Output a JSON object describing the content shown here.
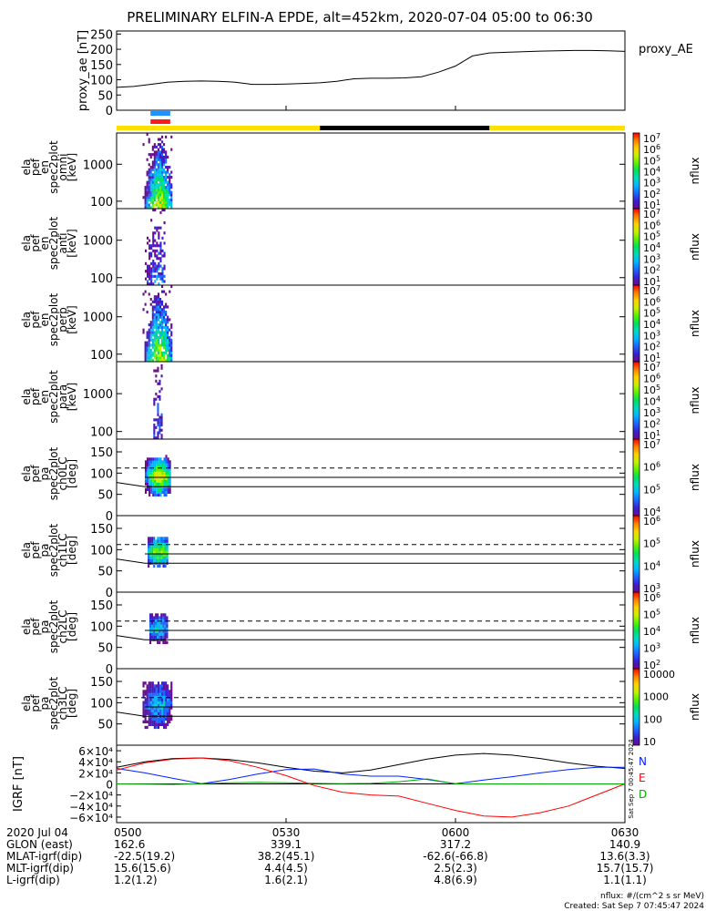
{
  "title": "PRELIMINARY ELFIN-A EPDE, alt=452km, 2020-07-04 05:00 to 06:30",
  "colors": {
    "ae_line": "#000000",
    "bar_blue": "#1e90ff",
    "bar_red": "#ff1a1a",
    "status_yellow": "#ffe000",
    "status_black": "#000000",
    "igrf_n": "#0022ff",
    "igrf_e": "#ff0000",
    "igrf_d": "#00aa00",
    "igrf_total": "#000000"
  },
  "colorbar_colors": [
    "#ffffff",
    "#6a0a8c",
    "#3a1fd0",
    "#1e64ff",
    "#00b4ff",
    "#00d8c0",
    "#00e060",
    "#5ef000",
    "#c8f000",
    "#ffd000",
    "#ff8000",
    "#ff0000"
  ],
  "chart_data": [
    {
      "type": "line",
      "name": "proxy_ae",
      "ylabel": "proxy_ae [nT]",
      "legend": "proxy_AE",
      "ylim": [
        0,
        260
      ],
      "yticks": [
        "250",
        "200",
        "150",
        "100",
        "50",
        "0"
      ],
      "x": [
        0,
        3,
        6,
        9,
        12,
        15,
        18,
        21,
        24,
        27,
        30,
        33,
        36,
        39,
        42,
        45,
        48,
        51,
        54,
        57,
        60,
        63,
        66,
        69,
        72,
        75,
        78,
        81,
        84,
        87,
        90
      ],
      "values": [
        75,
        78,
        85,
        92,
        95,
        96,
        95,
        92,
        85,
        85,
        86,
        88,
        90,
        95,
        103,
        105,
        105,
        106,
        110,
        125,
        145,
        178,
        188,
        190,
        192,
        194,
        195,
        196,
        196,
        195,
        193
      ]
    },
    {
      "type": "status",
      "blue_bar": {
        "from": 6.0,
        "to": 9.5
      },
      "red_bar": {
        "from": 6.0,
        "to": 9.5
      },
      "yellow_segments": [
        [
          0,
          36.0
        ],
        [
          66.0,
          90
        ]
      ],
      "black_segments": [
        [
          36.0,
          66.0
        ]
      ]
    },
    {
      "type": "heatmap",
      "name": "omni",
      "ylabel": [
        "ela",
        "pef",
        "en",
        "spec2plot",
        "omni",
        "[keV]"
      ],
      "yticks": [
        "1000",
        "100"
      ],
      "ylim_keV": [
        63,
        7000
      ],
      "log": true,
      "colorbar": {
        "label": "nflux",
        "ticks": [
          "10^7",
          "10^6",
          "10^5",
          "10^4",
          "10^3",
          "10^2",
          "10^1"
        ]
      },
      "x_range": [
        4.6,
        9.6
      ],
      "peak_x": 7.4,
      "intensity": 1.0
    },
    {
      "type": "heatmap",
      "name": "anti",
      "ylabel": [
        "ela",
        "pef",
        "en",
        "spec2plot",
        "anti",
        "[keV]"
      ],
      "yticks": [
        "1000",
        "100"
      ],
      "ylim_keV": [
        63,
        7000
      ],
      "log": true,
      "colorbar": {
        "label": "nflux",
        "ticks": [
          "10^7",
          "10^6",
          "10^5",
          "10^4",
          "10^3",
          "10^2",
          "10^1"
        ]
      },
      "x_range": [
        5.0,
        8.6
      ],
      "peak_x": 7.2,
      "intensity": 0.35
    },
    {
      "type": "heatmap",
      "name": "perp",
      "ylabel": [
        "ela",
        "pef",
        "en",
        "spec2plot",
        "perp",
        "[keV]"
      ],
      "yticks": [
        "1000",
        "100"
      ],
      "ylim_keV": [
        63,
        7000
      ],
      "log": true,
      "colorbar": {
        "label": "nflux",
        "ticks": [
          "10^7",
          "10^6",
          "10^5",
          "10^4",
          "10^3",
          "10^2",
          "10^1"
        ]
      },
      "x_range": [
        4.6,
        9.6
      ],
      "peak_x": 7.4,
      "intensity": 1.0
    },
    {
      "type": "heatmap",
      "name": "para",
      "ylabel": [
        "ela",
        "pef",
        "en",
        "spec2plot",
        "para",
        "[keV]"
      ],
      "yticks": [
        "1000",
        "100"
      ],
      "ylim_keV": [
        63,
        7000
      ],
      "log": true,
      "colorbar": {
        "label": "nflux",
        "ticks": [
          "10^7",
          "10^6",
          "10^5",
          "10^4",
          "10^3",
          "10^2",
          "10^1"
        ]
      },
      "x_range": [
        6.5,
        8.0
      ],
      "peak_x": 7.3,
      "intensity": 0.3
    },
    {
      "type": "heatmap",
      "name": "ch0LC",
      "ylabel": [
        "ela",
        "pef",
        "pa",
        "spec2plot",
        "ch0LC",
        "[deg]"
      ],
      "yticks": [
        "150",
        "100",
        "50",
        "0"
      ],
      "ylim": [
        0,
        180
      ],
      "colorbar": {
        "label": "nflux",
        "ticks": [
          "10^7",
          "10^6",
          "10^5",
          "10^4"
        ]
      },
      "x_range": [
        5.0,
        9.6
      ],
      "peak_x": 7.4,
      "pa_center": 92,
      "pa_half": 40,
      "intensity": 1.0,
      "lc_dashed": 112,
      "lc_solid": [
        68,
        90
      ],
      "lc_start": 78
    },
    {
      "type": "heatmap",
      "name": "ch1LC",
      "ylabel": [
        "ela",
        "pef",
        "pa",
        "spec2plot",
        "ch1LC",
        "[deg]"
      ],
      "yticks": [
        "150",
        "100",
        "50",
        "0"
      ],
      "ylim": [
        0,
        180
      ],
      "colorbar": {
        "label": "nflux",
        "ticks": [
          "10^6",
          "10^5",
          "10^4",
          "10^3"
        ]
      },
      "x_range": [
        5.5,
        9.0
      ],
      "peak_x": 7.5,
      "pa_center": 95,
      "pa_half": 30,
      "intensity": 0.9,
      "lc_dashed": 112,
      "lc_solid": [
        68,
        90
      ],
      "lc_start": 78
    },
    {
      "type": "heatmap",
      "name": "ch2LC",
      "ylabel": [
        "ela",
        "pef",
        "pa",
        "spec2plot",
        "ch2LC",
        "[deg]"
      ],
      "yticks": [
        "150",
        "100",
        "50",
        "0"
      ],
      "ylim": [
        0,
        180
      ],
      "colorbar": {
        "label": "nflux",
        "ticks": [
          "10^6",
          "10^5",
          "10^4",
          "10^3",
          "10^2"
        ]
      },
      "x_range": [
        5.8,
        9.0
      ],
      "peak_x": 7.2,
      "pa_center": 95,
      "pa_half": 30,
      "intensity": 0.55,
      "lc_dashed": 112,
      "lc_solid": [
        68,
        90
      ],
      "lc_start": 78
    },
    {
      "type": "heatmap",
      "name": "ch3LC",
      "ylabel": [
        "ela",
        "pef",
        "pa",
        "spec2plot",
        "ch3LC",
        "[deg]"
      ],
      "yticks": [
        "150",
        "100",
        "50"
      ],
      "ylim": [
        0,
        180
      ],
      "colorbar": {
        "label": "nflux",
        "ticks": [
          "10000",
          "1000",
          "100",
          "10"
        ]
      },
      "x_range": [
        4.6,
        9.6
      ],
      "peak_x": 7.2,
      "pa_center": 95,
      "pa_half": 50,
      "intensity": 0.5,
      "lc_dashed": 112,
      "lc_solid": [
        68,
        90
      ],
      "lc_start": 78
    },
    {
      "type": "line",
      "name": "igrf",
      "ylabel": "IGRF [nT]",
      "ylim": [
        -70000,
        70000
      ],
      "yticks": [
        "6×10⁴",
        "4×10⁴",
        "2×10⁴",
        "0",
        "−2×10⁴",
        "−4×10⁴",
        "−6×10⁴"
      ],
      "legend": [
        "N",
        "E",
        "D"
      ],
      "x": [
        0,
        5,
        10,
        15,
        20,
        25,
        30,
        35,
        40,
        45,
        50,
        55,
        60,
        65,
        70,
        75,
        80,
        85,
        90
      ],
      "series": [
        {
          "key": "total",
          "values": [
            30000,
            40000,
            46000,
            47000,
            44000,
            38000,
            30000,
            23000,
            20000,
            25000,
            35000,
            45000,
            52000,
            55000,
            52000,
            46000,
            38000,
            32000,
            28000
          ]
        },
        {
          "key": "N",
          "values": [
            28000,
            20000,
            10000,
            500,
            8000,
            18000,
            26000,
            27000,
            18000,
            14000,
            14000,
            8000,
            500,
            7000,
            13000,
            20000,
            26000,
            30000,
            30000
          ]
        },
        {
          "key": "E",
          "values": [
            25000,
            38000,
            45000,
            47000,
            42000,
            30000,
            15000,
            -3000,
            -15000,
            -20000,
            -22000,
            -35000,
            -48000,
            -58000,
            -60000,
            -52000,
            -40000,
            -20000,
            0
          ]
        },
        {
          "key": "D",
          "values": [
            0,
            -500,
            -1000,
            500,
            2000,
            3000,
            2000,
            1000,
            500,
            1000,
            4000,
            9000,
            0,
            0,
            0,
            0,
            0,
            0,
            0
          ]
        }
      ]
    }
  ],
  "xaxis": {
    "tick_labels": [
      "0500",
      "0530",
      "0600",
      "0630"
    ],
    "tick_minutes": [
      0,
      30,
      60,
      90
    ],
    "rows": [
      {
        "label": "2020 Jul 04",
        "values": [
          "0500",
          "0530",
          "0600",
          "0630"
        ]
      },
      {
        "label": "GLON (east)",
        "values": [
          "162.6",
          "339.1",
          "317.2",
          "140.9"
        ]
      },
      {
        "label": "MLAT-igrf(dip)",
        "values": [
          "-22.5(19.2)",
          "38.2(45.1)",
          "-62.6(-66.8)",
          "13.6(3.3)"
        ]
      },
      {
        "label": "MLT-igrf(dip)",
        "values": [
          "15.6(15.6)",
          "4.4(4.5)",
          "2.5(2.3)",
          "15.7(15.7)"
        ]
      },
      {
        "label": "L-igrf(dip)",
        "values": [
          "1.2(1.2)",
          "1.6(2.1)",
          "4.8(6.9)",
          "1.1(1.1)"
        ]
      }
    ]
  },
  "footer": {
    "units": "nflux: #/(cm^2 s sr MeV)",
    "created": "Created: Sat Sep  7 07:45:47 2024",
    "vertical_stamp": "Sat Sep  7 00:45:47 2024"
  }
}
